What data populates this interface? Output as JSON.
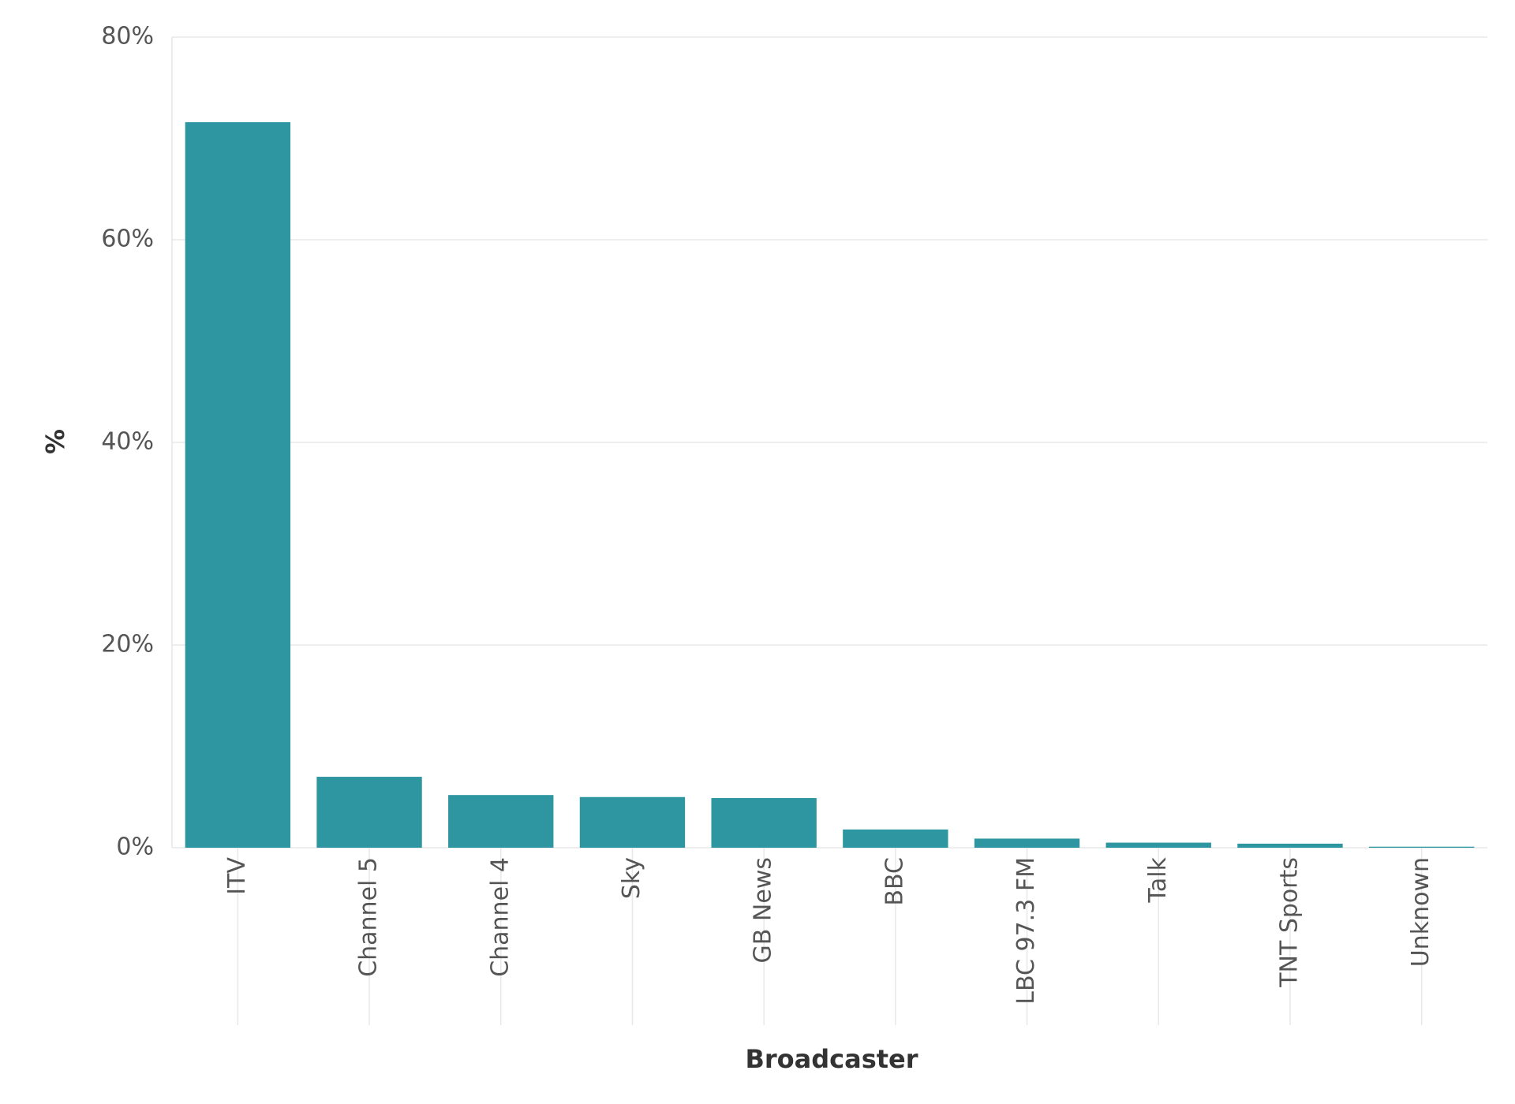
{
  "chart_data": {
    "type": "bar",
    "x_label": "Broadcaster",
    "y_label": "%",
    "categories": [
      "ITV",
      "Channel 5",
      "Channel 4",
      "Sky",
      "GB News",
      "BBC",
      "LBC 97.3 FM",
      "Talk",
      "TNT Sports",
      "Unknown"
    ],
    "values": [
      71.6,
      7.0,
      5.2,
      5.0,
      4.9,
      1.8,
      0.9,
      0.5,
      0.4,
      0.1
    ],
    "color": "#2e96a0",
    "ylim": [
      0,
      80
    ],
    "yticks": [
      {
        "value": 0,
        "label": "0%"
      },
      {
        "value": 20,
        "label": "20%"
      },
      {
        "value": 40,
        "label": "40%"
      },
      {
        "value": 60,
        "label": "60%"
      },
      {
        "value": 80,
        "label": "80%"
      }
    ],
    "grid": true
  }
}
